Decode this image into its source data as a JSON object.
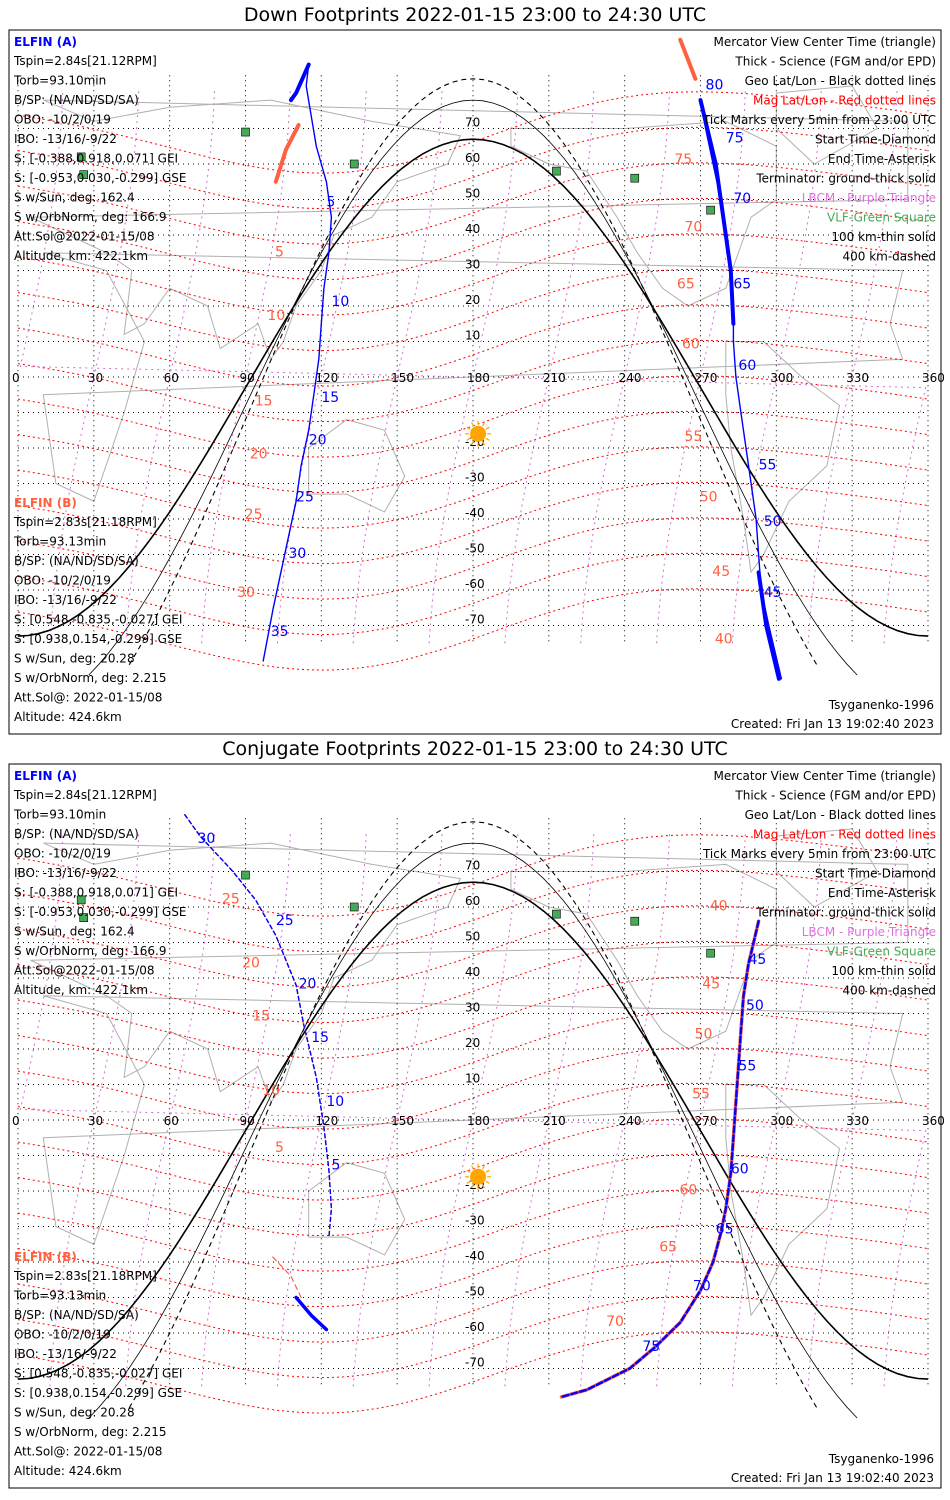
{
  "colors": {
    "sat_a": "#0000ff",
    "sat_b": "#ff6040",
    "mag_grid": "#ff0000",
    "geo_grid": "#000000",
    "sun": "#ffa500",
    "vlf": "#44aa55",
    "lbcm": "#e070e0"
  },
  "panels": [
    {
      "title": "Down Footprints 2022-01-15 23:00 to 24:30 UTC",
      "elfin_a": {
        "header": "ELFIN (A)",
        "lines": [
          "Tspin=2.84s[21.12RPM]",
          "Torb=93.10min",
          "B/SP: (NA/ND/SD/SA)",
          "OBO: -10/2/0/19",
          "IBO: -13/16/-9/22",
          "S: [-0.388,0.918,0.071] GEI",
          "S: [-0.953,0.030,-0.299] GSE",
          "S w/Sun, deg: 162.4",
          "S w/OrbNorm, deg: 166.9",
          "Att.Sol@2022-01-15/08",
          "Altitude, km: 422.1km"
        ]
      },
      "elfin_b": {
        "header": "ELFIN (B)",
        "lines": [
          "Tspin=2.83s[21.18RPM]",
          "Torb=93.13min",
          "B/SP: (NA/ND/SD/SA)",
          "OBO: -10/2/0/19",
          "IBO: -13/16/-9/22",
          "S: [0.548,-0.835,-0.027] GEI",
          "S: [0.938,0.154,-0.299] GSE",
          "S w/Sun, deg: 20.28",
          "S w/OrbNorm, deg: 2.215",
          "Att.Sol@: 2022-01-15/08",
          "Altitude: 424.6km"
        ]
      },
      "legend": [
        "Mercator View Center Time (triangle)",
        "Thick - Science (FGM and/or EPD)",
        "Geo Lat/Lon - Black dotted lines",
        "Mag Lat/Lon - Red dotted lines",
        "Tick Marks every 5min from 23:00 UTC",
        "Start Time-Diamond",
        "End Time-Asterisk",
        "Terminator: ground-thick solid",
        "LBCM - Purple Triangle",
        "VLF-Green Square",
        "100 km-thin solid",
        "400 km-dashed"
      ],
      "model": "Tsyganenko-1996",
      "created": "Created: Fri Jan 13 19:02:40 2023",
      "ticks_a": [
        {
          "t": "5",
          "lon": 122,
          "lat": 48
        },
        {
          "t": "10",
          "lon": 124,
          "lat": 20
        },
        {
          "t": "15",
          "lon": 120,
          "lat": -7
        },
        {
          "t": "20",
          "lon": 115,
          "lat": -19
        },
        {
          "t": "25",
          "lon": 110,
          "lat": -35
        },
        {
          "t": "30",
          "lon": 107,
          "lat": -51
        },
        {
          "t": "35",
          "lon": 100,
          "lat": -73
        },
        {
          "t": "45",
          "lon": 295,
          "lat": -62
        },
        {
          "t": "50",
          "lon": 295,
          "lat": -42
        },
        {
          "t": "55",
          "lon": 293,
          "lat": -26
        },
        {
          "t": "60",
          "lon": 285,
          "lat": 2
        },
        {
          "t": "65",
          "lon": 283,
          "lat": 25
        },
        {
          "t": "70",
          "lon": 283,
          "lat": 49
        },
        {
          "t": "75",
          "lon": 280,
          "lat": 66
        },
        {
          "t": "80",
          "lon": 272,
          "lat": 81
        }
      ],
      "ticks_b": [
        {
          "t": "5",
          "lon": 108,
          "lat": 34
        },
        {
          "t": "10",
          "lon": 105,
          "lat": 16
        },
        {
          "t": "15",
          "lon": 100,
          "lat": -8
        },
        {
          "t": "20",
          "lon": 98,
          "lat": -23
        },
        {
          "t": "25",
          "lon": 96,
          "lat": -40
        },
        {
          "t": "30",
          "lon": 93,
          "lat": -62
        },
        {
          "t": "40",
          "lon": 282,
          "lat": -75
        },
        {
          "t": "45",
          "lon": 281,
          "lat": -56
        },
        {
          "t": "50",
          "lon": 276,
          "lat": -35
        },
        {
          "t": "55",
          "lon": 270,
          "lat": -18
        },
        {
          "t": "60",
          "lon": 269,
          "lat": 8
        },
        {
          "t": "65",
          "lon": 267,
          "lat": 25
        },
        {
          "t": "70",
          "lon": 270,
          "lat": 41
        },
        {
          "t": "75",
          "lon": 266,
          "lat": 60
        }
      ]
    },
    {
      "title": "Conjugate Footprints 2022-01-15 23:00 to 24:30 UTC",
      "elfin_a": {
        "header": "ELFIN (A)",
        "lines": [
          "Tspin=2.84s[21.12RPM]",
          "Torb=93.10min",
          "B/SP: (NA/ND/SD/SA)",
          "OBO: -10/2/0/19",
          "IBO: -13/16/-9/22",
          "S: [-0.388,0.918,0.071] GEI",
          "S: [-0.953,0.030,-0.299] GSE",
          "S w/Sun, deg: 162.4",
          "S w/OrbNorm, deg: 166.9",
          "Att.Sol@2022-01-15/08",
          "Altitude, km: 422.1km"
        ]
      },
      "elfin_b": {
        "header": "ELFIN (B)",
        "lines": [
          "Tspin=2.83s[21.18RPM]",
          "Torb=93.13min",
          "B/SP: (NA/ND/SD/SA)",
          "OBO: -10/2/0/19",
          "IBO: -13/16/-9/22",
          "S: [0.548,-0.835,-0.027] GEI",
          "S: [0.938,0.154,-0.299] GSE",
          "S w/Sun, deg: 20.28",
          "S w/OrbNorm, deg: 2.215",
          "Att.Sol@: 2022-01-15/08",
          "Altitude: 424.6km"
        ]
      },
      "legend": [
        "Mercator View Center Time (triangle)",
        "Thick - Science (FGM and/or EPD)",
        "Geo Lat/Lon - Black dotted lines",
        "Mag Lat/Lon - Red dotted lines",
        "Tick Marks every 5min from 23:00 UTC",
        "Start Time-Diamond",
        "End Time-Asterisk",
        "Terminator: ground-thick solid",
        "LBCM - Purple Triangle",
        "VLF-Green Square",
        "100 km-thin solid",
        "400 km-dashed"
      ],
      "model": "Tsyganenko-1996",
      "created": "Created: Fri Jan 13 19:02:40 2023",
      "ticks_a": [
        {
          "t": "5",
          "lon": 124,
          "lat": -14
        },
        {
          "t": "10",
          "lon": 122,
          "lat": 4
        },
        {
          "t": "15",
          "lon": 116,
          "lat": 22
        },
        {
          "t": "20",
          "lon": 111,
          "lat": 37
        },
        {
          "t": "25",
          "lon": 102,
          "lat": 55
        },
        {
          "t": "30",
          "lon": 71,
          "lat": 78
        },
        {
          "t": "45",
          "lon": 289,
          "lat": 44
        },
        {
          "t": "50",
          "lon": 288,
          "lat": 31
        },
        {
          "t": "55",
          "lon": 285,
          "lat": 14
        },
        {
          "t": "60",
          "lon": 282,
          "lat": -15
        },
        {
          "t": "65",
          "lon": 276,
          "lat": -32
        },
        {
          "t": "70",
          "lon": 267,
          "lat": -48
        },
        {
          "t": "75",
          "lon": 247,
          "lat": -65
        }
      ],
      "ticks_b": [
        {
          "t": "5",
          "lon": 108,
          "lat": -9
        },
        {
          "t": "10",
          "lon": 103,
          "lat": 7
        },
        {
          "t": "15",
          "lon": 99,
          "lat": 28
        },
        {
          "t": "20",
          "lon": 95,
          "lat": 43
        },
        {
          "t": "25",
          "lon": 87,
          "lat": 61
        },
        {
          "t": "40",
          "lon": 280,
          "lat": 59
        },
        {
          "t": "45",
          "lon": 277,
          "lat": 37
        },
        {
          "t": "50",
          "lon": 274,
          "lat": 23
        },
        {
          "t": "55",
          "lon": 273,
          "lat": 6
        },
        {
          "t": "60",
          "lon": 268,
          "lat": -21
        },
        {
          "t": "65",
          "lon": 260,
          "lat": -37
        },
        {
          "t": "70",
          "lon": 239,
          "lat": -58
        }
      ]
    }
  ],
  "map": {
    "lon_ticks": [
      "0",
      "30",
      "60",
      "90",
      "120",
      "150",
      "180",
      "210",
      "240",
      "270",
      "300",
      "330",
      "360"
    ],
    "lat_ticks": [
      "70",
      "60",
      "50",
      "40",
      "30",
      "20",
      "10",
      "-20",
      "-30",
      "-40",
      "-50",
      "-60",
      "-70"
    ]
  },
  "tracks": {
    "down_a": [
      [
        115,
        88
      ],
      [
        114,
        82
      ],
      [
        118,
        65
      ],
      [
        122,
        55
      ],
      [
        124,
        45
      ],
      [
        123,
        35
      ],
      [
        121,
        25
      ],
      [
        120,
        15
      ],
      [
        119,
        5
      ],
      [
        117,
        -5
      ],
      [
        115,
        -15
      ],
      [
        112,
        -25
      ],
      [
        110,
        -35
      ],
      [
        107,
        -45
      ],
      [
        104,
        -55
      ],
      [
        101,
        -65
      ],
      [
        97,
        -80
      ]
    ],
    "down_a_sci1": [
      [
        115,
        88
      ],
      [
        110,
        80
      ],
      [
        108,
        78
      ]
    ],
    "down_b_sci1": [
      [
        111,
        71
      ],
      [
        106,
        64
      ],
      [
        102,
        55
      ]
    ],
    "down_a2": [
      [
        270,
        78
      ],
      [
        272,
        70
      ],
      [
        275,
        60
      ],
      [
        278,
        50
      ],
      [
        280,
        40
      ],
      [
        282,
        30
      ],
      [
        283,
        20
      ],
      [
        283,
        10
      ],
      [
        284,
        0
      ],
      [
        286,
        -10
      ],
      [
        288,
        -20
      ],
      [
        290,
        -30
      ],
      [
        292,
        -40
      ],
      [
        293,
        -50
      ],
      [
        294,
        -60
      ],
      [
        297,
        -70
      ],
      [
        302,
        -85
      ]
    ],
    "down_b2_sci": [
      [
        262,
        95
      ],
      [
        268,
        84
      ]
    ],
    "conj_a": [
      [
        66,
        86
      ],
      [
        72,
        80
      ],
      [
        85,
        70
      ],
      [
        94,
        62
      ],
      [
        102,
        52
      ],
      [
        110,
        38
      ],
      [
        113,
        27
      ],
      [
        118,
        12
      ],
      [
        121,
        -2
      ],
      [
        123,
        -14
      ],
      [
        124,
        -25
      ],
      [
        123,
        -33
      ]
    ],
    "conj_a_sci": [
      [
        110,
        -50
      ],
      [
        116,
        -55
      ],
      [
        122,
        -59
      ]
    ],
    "conj_a2": [
      [
        293,
        56
      ],
      [
        291,
        50
      ],
      [
        289,
        44
      ],
      [
        287,
        35
      ],
      [
        286,
        25
      ],
      [
        285,
        15
      ],
      [
        284,
        5
      ],
      [
        283,
        -5
      ],
      [
        282,
        -15
      ],
      [
        280,
        -25
      ],
      [
        278,
        -32
      ],
      [
        275,
        -40
      ],
      [
        270,
        -48
      ],
      [
        262,
        -57
      ],
      [
        252,
        -64
      ],
      [
        242,
        -70
      ],
      [
        225,
        -76
      ],
      [
        215,
        -78
      ]
    ],
    "down_b": [
      [
        116,
        57
      ],
      [
        117,
        40
      ],
      [
        118,
        25
      ]
    ],
    "conj_b": [
      [
        112,
        -50
      ],
      [
        108,
        -44
      ],
      [
        100,
        -38
      ]
    ]
  },
  "vlf_sites": [
    [
      90,
      69
    ],
    [
      25,
      62
    ],
    [
      26,
      57
    ],
    [
      133,
      60
    ],
    [
      213,
      58
    ],
    [
      244,
      56
    ],
    [
      274,
      47
    ]
  ]
}
